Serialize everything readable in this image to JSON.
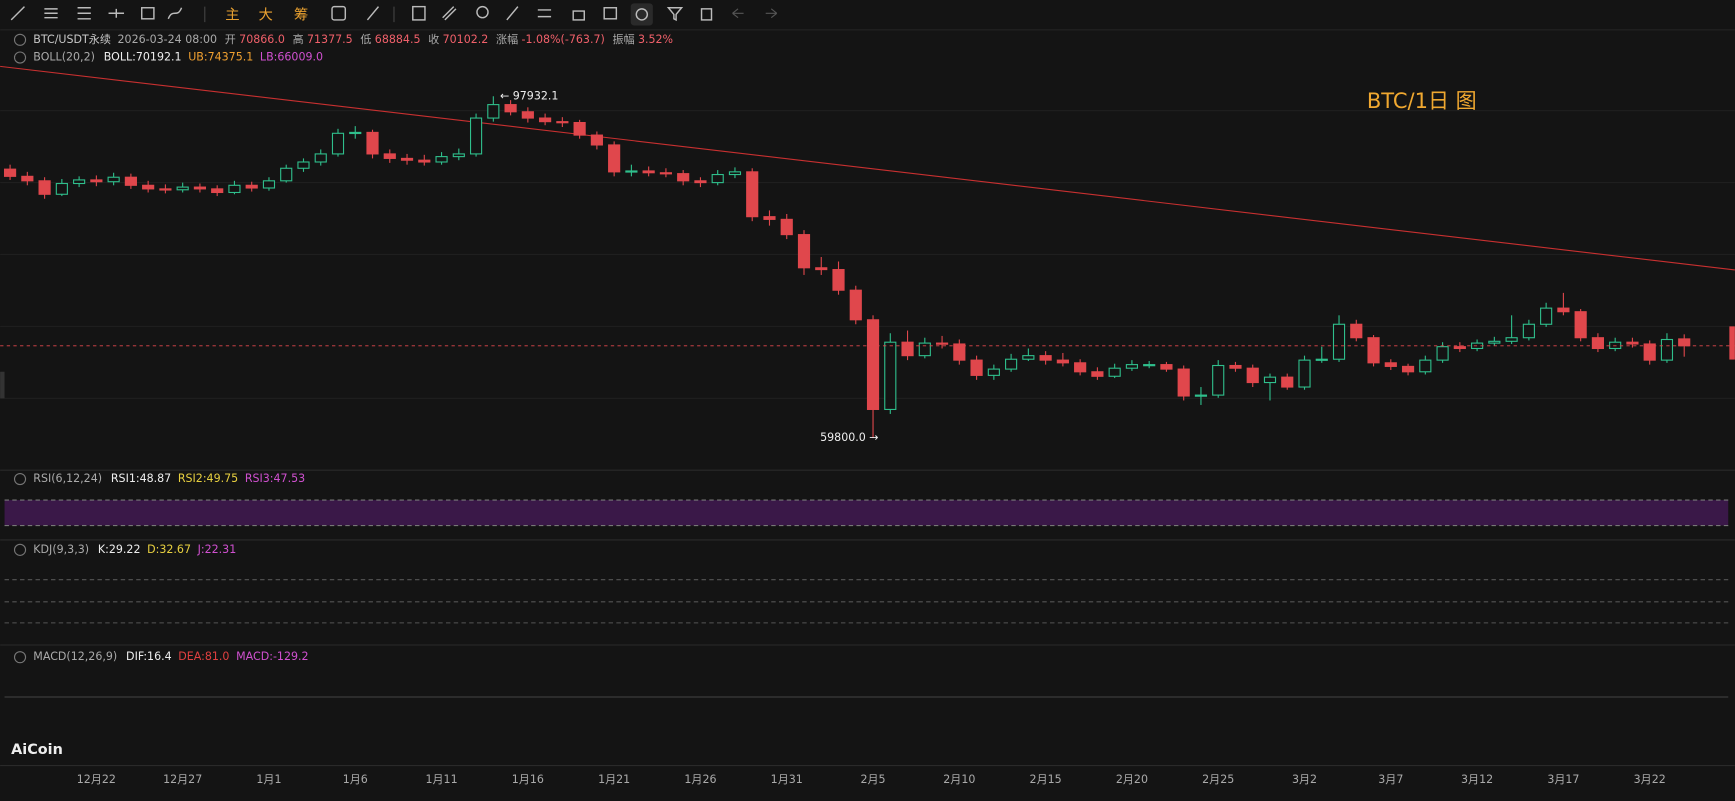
{
  "toolbar": [
    "主",
    "大",
    "筹"
  ],
  "chart_data": {
    "type": "candlestick",
    "symbol": "BTC/USDT永续",
    "time": "2026-03-24 08:00",
    "quote": [
      [
        "开",
        "70866.0"
      ],
      [
        "高",
        "71377.5"
      ],
      [
        "低",
        "68884.5"
      ],
      [
        "收",
        "70102.2"
      ],
      [
        "涨幅",
        "-1.08%(-763.7)"
      ],
      [
        "振幅",
        "3.52%"
      ]
    ],
    "boll": {
      "name": "BOLL(20,2)",
      "items": [
        "BOLL:70192.1",
        "UB:74375.1",
        "LB:66009.0"
      ]
    },
    "rsi": {
      "name": "RSI(6,12,24)",
      "items": [
        "RSI1:48.87",
        "RSI2:49.75",
        "RSI3:47.53"
      ]
    },
    "kdj": {
      "name": "KDJ(9,3,3)",
      "items": [
        "K:29.22",
        "D:32.67",
        "J:22.31"
      ]
    },
    "macd": {
      "name": "MACD(12,26,9)",
      "items": [
        "DIF:16.4",
        "DEA:81.0",
        "MACD:-129.2"
      ]
    },
    "title": "BTC/1日 图",
    "high_label": "← 97932.1",
    "low_label": "59800.0 →",
    "brand": "AiCoin",
    "up_color": "#2fbf8c",
    "down_color": "#e0474c",
    "ylim": [
      56840,
      103115
    ],
    "categories": [
      null,
      null,
      null,
      null,
      null,
      "12月22",
      null,
      null,
      null,
      null,
      "12月27",
      null,
      null,
      null,
      null,
      "1月1",
      null,
      null,
      null,
      null,
      "1月6",
      null,
      null,
      null,
      null,
      "1月11",
      null,
      null,
      null,
      null,
      "1月16",
      null,
      null,
      null,
      null,
      "1月21",
      null,
      null,
      null,
      null,
      "1月26",
      null,
      null,
      null,
      null,
      "1月31",
      null,
      null,
      null,
      null,
      "2月5",
      null,
      null,
      null,
      null,
      "2月10",
      null,
      null,
      null,
      null,
      "2月15",
      null,
      null,
      null,
      null,
      "2月20",
      null,
      null,
      null,
      null,
      "2月25",
      null,
      null,
      null,
      null,
      "3月2",
      null,
      null,
      null,
      null,
      "3月7",
      null,
      null,
      null,
      null,
      "3月12",
      null,
      null,
      null,
      null,
      "3月17",
      null,
      null,
      null,
      null,
      "3月22",
      null,
      null
    ],
    "ohlc": [
      [
        89800,
        90300,
        88600,
        89000
      ],
      [
        89000,
        89500,
        88000,
        88500
      ],
      [
        88500,
        88900,
        86500,
        87000
      ],
      [
        87000,
        88700,
        86800,
        88200
      ],
      [
        88200,
        89000,
        87800,
        88600
      ],
      [
        88600,
        89100,
        87900,
        88400
      ],
      [
        88400,
        89400,
        88000,
        88900
      ],
      [
        88900,
        89300,
        87600,
        88000
      ],
      [
        88000,
        88500,
        87200,
        87600
      ],
      [
        87600,
        88100,
        87100,
        87500
      ],
      [
        87500,
        88300,
        87200,
        87800
      ],
      [
        87800,
        88200,
        87200,
        87600
      ],
      [
        87600,
        88000,
        86800,
        87200
      ],
      [
        87200,
        88500,
        87000,
        88000
      ],
      [
        88000,
        88400,
        87300,
        87700
      ],
      [
        87700,
        88900,
        87400,
        88500
      ],
      [
        88500,
        90300,
        88300,
        89900
      ],
      [
        89900,
        91000,
        89500,
        90600
      ],
      [
        90600,
        92000,
        90200,
        91500
      ],
      [
        91500,
        94300,
        91200,
        93800
      ],
      [
        93800,
        94600,
        93200,
        93900
      ],
      [
        93900,
        94200,
        91000,
        91500
      ],
      [
        91500,
        92000,
        90500,
        91000
      ],
      [
        91000,
        91500,
        90300,
        90800
      ],
      [
        90800,
        91400,
        90200,
        90600
      ],
      [
        90600,
        91700,
        90300,
        91200
      ],
      [
        91200,
        92100,
        90800,
        91500
      ],
      [
        91500,
        96000,
        91200,
        95500
      ],
      [
        95500,
        97932.1,
        95100,
        97000
      ],
      [
        97000,
        97500,
        95800,
        96200
      ],
      [
        96200,
        96700,
        95000,
        95500
      ],
      [
        95500,
        96000,
        94700,
        95100
      ],
      [
        95100,
        95600,
        94500,
        95000
      ],
      [
        95000,
        95300,
        93200,
        93600
      ],
      [
        93600,
        94000,
        92000,
        92500
      ],
      [
        92500,
        92900,
        89000,
        89500
      ],
      [
        89500,
        90300,
        89000,
        89600
      ],
      [
        89600,
        90100,
        89000,
        89400
      ],
      [
        89400,
        89900,
        88900,
        89300
      ],
      [
        89300,
        89700,
        88000,
        88500
      ],
      [
        88500,
        88900,
        87800,
        88300
      ],
      [
        88300,
        89700,
        88000,
        89200
      ],
      [
        89200,
        90000,
        88800,
        89500
      ],
      [
        89500,
        89900,
        84000,
        84500
      ],
      [
        84500,
        85200,
        83500,
        84200
      ],
      [
        84200,
        84800,
        82000,
        82500
      ],
      [
        82500,
        83000,
        78000,
        78800
      ],
      [
        78800,
        80000,
        78000,
        78600
      ],
      [
        78600,
        79500,
        75800,
        76300
      ],
      [
        76300,
        76800,
        72500,
        73000
      ],
      [
        73000,
        73500,
        59800,
        63000
      ],
      [
        63000,
        71500,
        62500,
        70500
      ],
      [
        70500,
        71800,
        68500,
        69000
      ],
      [
        69000,
        71000,
        68700,
        70400
      ],
      [
        70400,
        71200,
        69800,
        70300
      ],
      [
        70300,
        70800,
        68000,
        68500
      ],
      [
        68500,
        69000,
        66300,
        66800
      ],
      [
        66800,
        68000,
        66300,
        67500
      ],
      [
        67500,
        69200,
        67200,
        68600
      ],
      [
        68600,
        69800,
        68400,
        69000
      ],
      [
        69000,
        69500,
        68000,
        68500
      ],
      [
        68500,
        69300,
        67800,
        68200
      ],
      [
        68200,
        68600,
        66800,
        67200
      ],
      [
        67200,
        67700,
        66300,
        66700
      ],
      [
        66700,
        68100,
        66500,
        67600
      ],
      [
        67600,
        68500,
        67300,
        68000
      ],
      [
        68000,
        68400,
        67600,
        68000
      ],
      [
        68000,
        68300,
        67200,
        67500
      ],
      [
        67500,
        67900,
        64000,
        64500
      ],
      [
        64500,
        65500,
        63500,
        64600
      ],
      [
        64600,
        68500,
        64300,
        67900
      ],
      [
        67900,
        68300,
        67200,
        67600
      ],
      [
        67600,
        68000,
        65500,
        66000
      ],
      [
        66000,
        67000,
        64000,
        66600
      ],
      [
        66600,
        67000,
        65200,
        65500
      ],
      [
        65500,
        69000,
        65200,
        68500
      ],
      [
        68500,
        70000,
        68200,
        68600
      ],
      [
        68600,
        73500,
        68300,
        72500
      ],
      [
        72500,
        73000,
        70600,
        71000
      ],
      [
        71000,
        71300,
        67800,
        68200
      ],
      [
        68200,
        68600,
        67400,
        67800
      ],
      [
        67800,
        68100,
        66800,
        67200
      ],
      [
        67200,
        69000,
        66900,
        68500
      ],
      [
        68500,
        70500,
        68200,
        70000
      ],
      [
        70000,
        70500,
        69400,
        69800
      ],
      [
        69800,
        70800,
        69500,
        70400
      ],
      [
        70400,
        71100,
        70100,
        70600
      ],
      [
        70600,
        73500,
        70300,
        71000
      ],
      [
        71000,
        73000,
        70700,
        72500
      ],
      [
        72500,
        74900,
        72200,
        74300
      ],
      [
        74300,
        76000,
        73500,
        73900
      ],
      [
        73900,
        74200,
        70600,
        71000
      ],
      [
        71000,
        71500,
        69400,
        69800
      ],
      [
        69800,
        71000,
        69500,
        70500
      ],
      [
        70500,
        71000,
        69900,
        70300
      ],
      [
        70300,
        70700,
        68000,
        68500
      ],
      [
        68500,
        71500,
        68200,
        70800
      ],
      [
        70866,
        71377.5,
        68884.5,
        70102.2
      ]
    ]
  }
}
